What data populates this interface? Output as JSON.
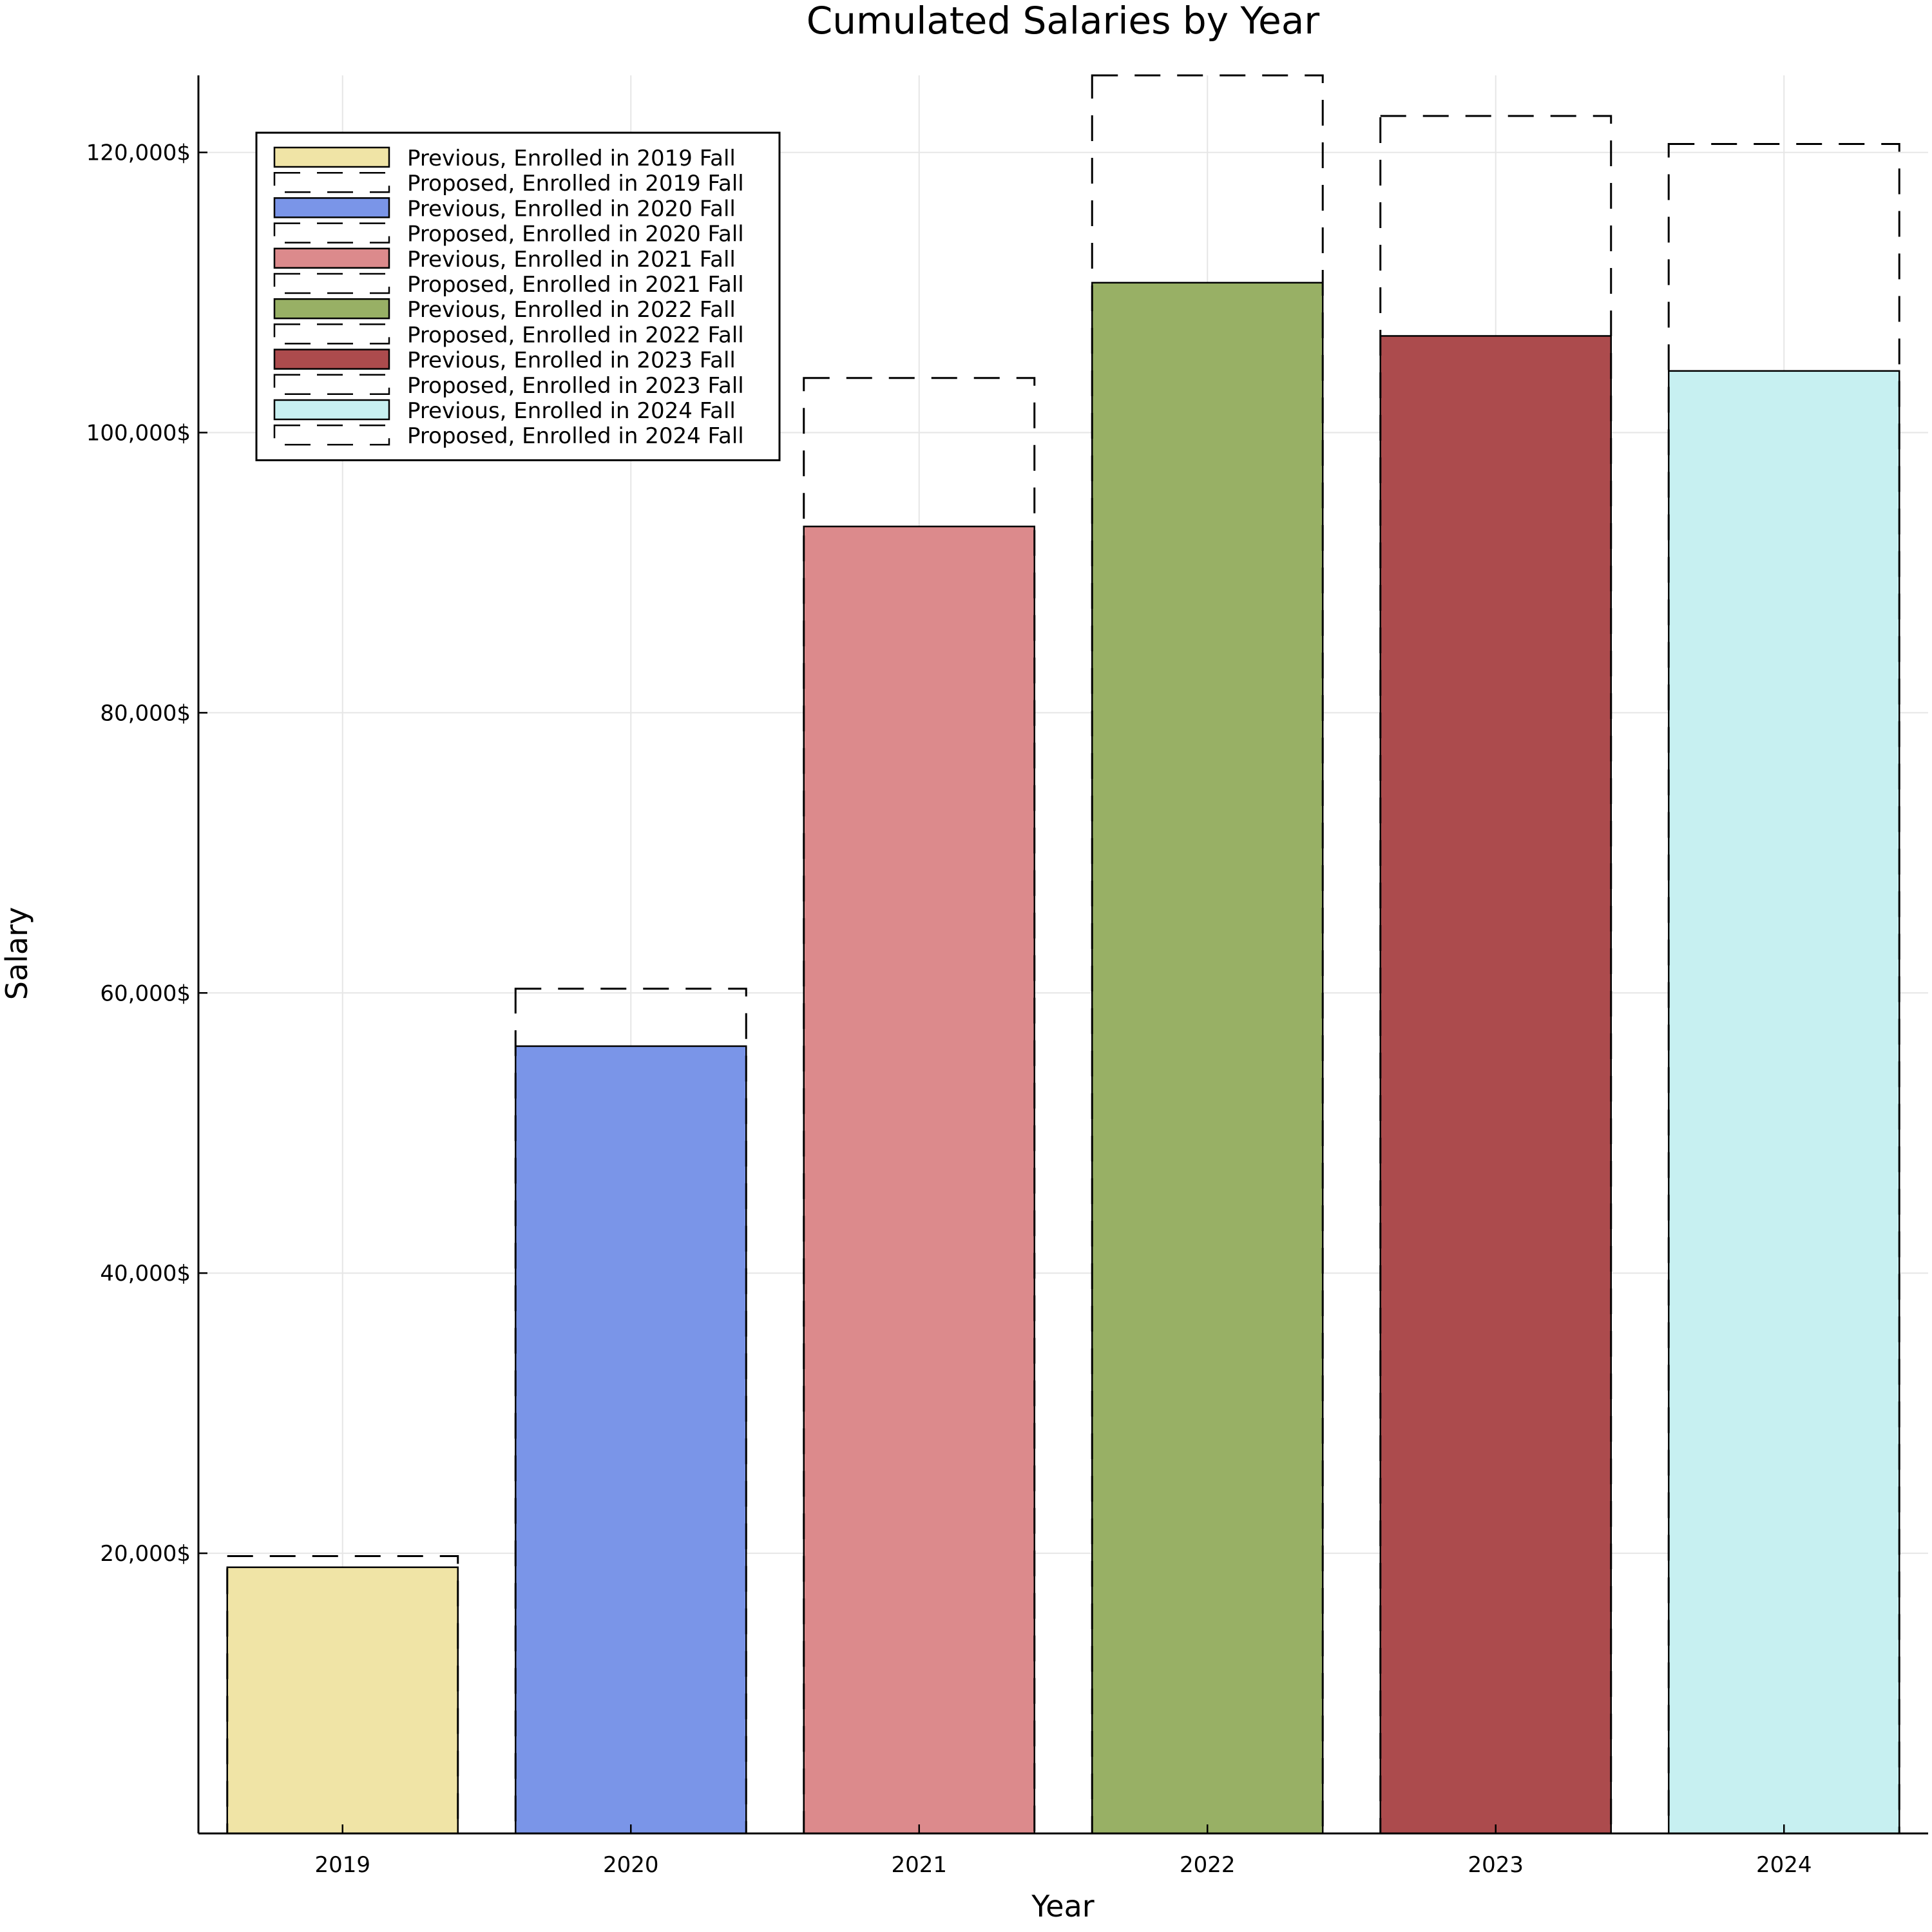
{
  "chart_data": {
    "type": "bar",
    "title": "Cumulated Salaries by Year",
    "xlabel": "Year",
    "ylabel": "Salary",
    "categories": [
      "2019",
      "2020",
      "2021",
      "2022",
      "2023",
      "2024"
    ],
    "ylim": [
      0,
      125500
    ],
    "yticks": [
      20000,
      40000,
      60000,
      80000,
      100000,
      120000
    ],
    "ytick_labels": [
      "20,000$",
      "40,000$",
      "60,000$",
      "80,000$",
      "100,000$",
      "120,000$"
    ],
    "grid": true,
    "legend_position": "top-left",
    "series": [
      {
        "name": "Previous",
        "style": "solid-fill",
        "values": [
          19000,
          56200,
          93300,
          110700,
          106900,
          104400
        ]
      },
      {
        "name": "Proposed",
        "style": "dashed-outline",
        "values": [
          19800,
          60300,
          103900,
          125500,
          122600,
          120600
        ]
      }
    ],
    "bar_colors": [
      "#f0e4a6",
      "#7a95e8",
      "#dc8a8c",
      "#98b065",
      "#ac4b4d",
      "#c7f0f1"
    ],
    "legend": [
      {
        "label": "Previous, Enrolled in 2019 Fall",
        "kind": "fill",
        "color": "#f0e4a6"
      },
      {
        "label": "Proposed, Enrolled in 2019 Fall",
        "kind": "dashed"
      },
      {
        "label": "Previous, Enrolled in 2020 Fall",
        "kind": "fill",
        "color": "#7a95e8"
      },
      {
        "label": "Proposed, Enrolled in 2020 Fall",
        "kind": "dashed"
      },
      {
        "label": "Previous, Enrolled in 2021 Fall",
        "kind": "fill",
        "color": "#dc8a8c"
      },
      {
        "label": "Proposed, Enrolled in 2021 Fall",
        "kind": "dashed"
      },
      {
        "label": "Previous, Enrolled in 2022 Fall",
        "kind": "fill",
        "color": "#98b065"
      },
      {
        "label": "Proposed, Enrolled in 2022 Fall",
        "kind": "dashed"
      },
      {
        "label": "Previous, Enrolled in 2023 Fall",
        "kind": "fill",
        "color": "#ac4b4d"
      },
      {
        "label": "Proposed, Enrolled in 2023 Fall",
        "kind": "dashed"
      },
      {
        "label": "Previous, Enrolled in 2024 Fall",
        "kind": "fill",
        "color": "#c7f0f1"
      },
      {
        "label": "Proposed, Enrolled in 2024 Fall",
        "kind": "dashed"
      }
    ]
  }
}
